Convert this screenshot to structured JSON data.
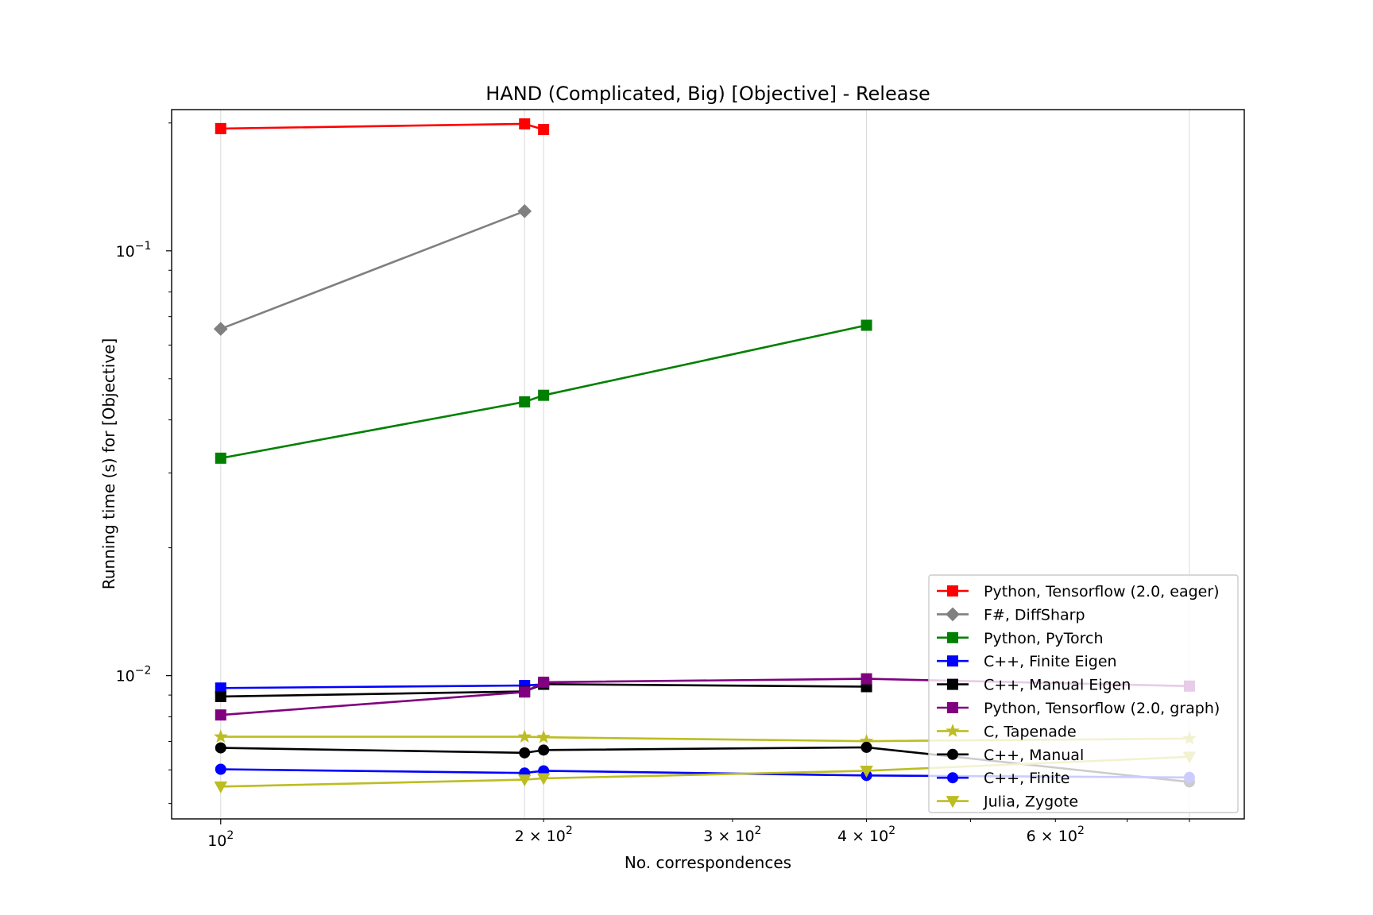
{
  "chart_data": {
    "type": "line",
    "title": "HAND (Complicated, Big) [Objective] - Release",
    "xlabel": "No. correspondences",
    "ylabel": "Running time (s) for [Objective]",
    "xscale": "log",
    "yscale": "log",
    "xlim": [
      90,
      900
    ],
    "ylim": [
      0.0046,
      0.215
    ],
    "x_major_ticks": [
      {
        "value": 100,
        "base": "10",
        "exp": "2"
      }
    ],
    "x_minor_ticks": [
      {
        "value": 200,
        "base": "2 × 10",
        "exp": "2"
      },
      {
        "value": 300,
        "base": "3 × 10",
        "exp": "2"
      },
      {
        "value": 400,
        "base": "4 × 10",
        "exp": "2"
      },
      {
        "value": 600,
        "base": "6 × 10",
        "exp": "2"
      }
    ],
    "x_unlabeled_minor_ticks": [
      500,
      700,
      800
    ],
    "y_major_ticks": [
      {
        "value": 0.1,
        "base": "10",
        "exp": "−1"
      },
      {
        "value": 0.01,
        "base": "10",
        "exp": "−2"
      }
    ],
    "y_minor_ticks": [
      0.005,
      0.006,
      0.007,
      0.008,
      0.009,
      0.02,
      0.03,
      0.04,
      0.05,
      0.06,
      0.07,
      0.08,
      0.09,
      0.2
    ],
    "grid": "x-axis vertical lines at data x positions",
    "grid_x": [
      100,
      192,
      200,
      400,
      800
    ],
    "legend_position": "lower-right",
    "series": [
      {
        "name": "Python, Tensorflow (2.0, eager)",
        "color": "#ff0000",
        "marker": "square",
        "x": [
          100,
          192,
          200
        ],
        "y": [
          0.194,
          0.199,
          0.193
        ]
      },
      {
        "name": "F#, DiffSharp",
        "color": "#808080",
        "marker": "diamond",
        "x": [
          100,
          192
        ],
        "y": [
          0.0655,
          0.124
        ]
      },
      {
        "name": "Python, PyTorch",
        "color": "#008000",
        "marker": "square",
        "x": [
          100,
          192,
          200,
          400
        ],
        "y": [
          0.0325,
          0.0441,
          0.0457,
          0.0668
        ]
      },
      {
        "name": "C++, Finite Eigen",
        "color": "#0000ff",
        "marker": "square",
        "x": [
          100,
          192,
          200
        ],
        "y": [
          0.00935,
          0.00948,
          0.00954
        ]
      },
      {
        "name": "C++, Manual Eigen",
        "color": "#000000",
        "marker": "square",
        "x": [
          100,
          192,
          200,
          400
        ],
        "y": [
          0.00893,
          0.00918,
          0.00955,
          0.00942
        ]
      },
      {
        "name": "Python, Tensorflow (2.0, graph)",
        "color": "#800080",
        "marker": "square",
        "x": [
          100,
          192,
          200,
          400,
          800
        ],
        "y": [
          0.00808,
          0.00915,
          0.00965,
          0.00983,
          0.00945
        ]
      },
      {
        "name": "C, Tapenade",
        "color": "#bcbd22",
        "marker": "star",
        "x": [
          100,
          192,
          200,
          400,
          800
        ],
        "y": [
          0.00718,
          0.00718,
          0.00716,
          0.00701,
          0.00711
        ]
      },
      {
        "name": "C++, Manual",
        "color": "#000000",
        "marker": "circle",
        "x": [
          100,
          192,
          200,
          400,
          800
        ],
        "y": [
          0.00676,
          0.00658,
          0.00668,
          0.00678,
          0.00562
        ]
      },
      {
        "name": "C++, Finite",
        "color": "#0000ff",
        "marker": "circle",
        "x": [
          100,
          192,
          200,
          400,
          800
        ],
        "y": [
          0.00602,
          0.0059,
          0.00597,
          0.00582,
          0.00576
        ]
      },
      {
        "name": "Julia, Zygote",
        "color": "#bcbd22",
        "marker": "triangle-down",
        "x": [
          100,
          192,
          200,
          400,
          800
        ],
        "y": [
          0.00548,
          0.00569,
          0.00573,
          0.00597,
          0.00644
        ]
      }
    ]
  }
}
